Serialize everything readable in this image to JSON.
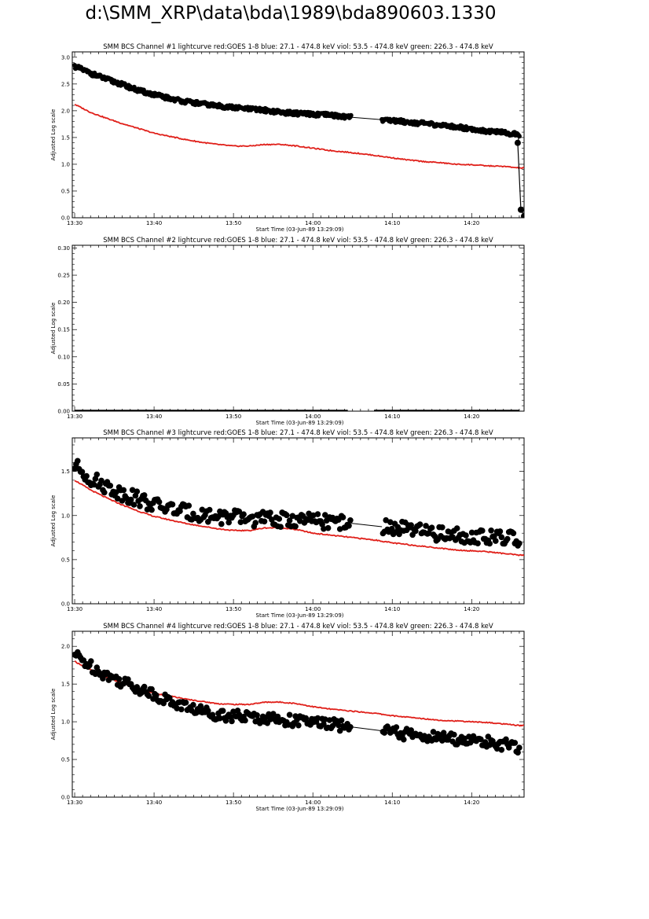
{
  "page": {
    "title": "d:\\SMM_XRP\\data\\bda\\1989\\bda890603.1330"
  },
  "colors": {
    "goes": "#e0201a",
    "bcs": "#000000"
  },
  "chart_data": [
    {
      "type": "scatter",
      "title": "SMM BCS Channel #1 lightcurve  red:GOES 1-8  blue: 27.1 - 474.8 keV  viol: 53.5 - 474.8 keV  green: 226.3 - 474.8 keV",
      "xlabel": "Start Time (03-Jun-89 13:29:09)",
      "ylabel": "Adjusted Log scale",
      "xticks": [
        "13:30",
        "13:40",
        "13:50",
        "14:00",
        "14:10",
        "14:20"
      ],
      "yticks": [
        "0.0",
        "0.5",
        "1.0",
        "1.5",
        "2.0",
        "2.5",
        "3.0"
      ],
      "xlim_minutes": [
        -0.15,
        28.3
      ],
      "ylim": [
        0,
        3.1
      ],
      "series": [
        {
          "name": "GOES 1-8",
          "style": "line",
          "color": "red",
          "x": [
            0,
            2,
            4,
            6,
            8,
            10,
            12,
            14,
            16,
            18,
            20,
            22,
            24,
            26,
            28,
            30,
            32,
            34,
            36,
            38,
            40,
            42,
            44,
            46,
            48,
            50,
            52,
            54,
            56
          ],
          "y": [
            2.12,
            1.97,
            1.86,
            1.76,
            1.67,
            1.58,
            1.52,
            1.46,
            1.41,
            1.37,
            1.34,
            1.34,
            1.37,
            1.37,
            1.34,
            1.3,
            1.26,
            1.23,
            1.2,
            1.16,
            1.12,
            1.08,
            1.05,
            1.03,
            1.0,
            0.99,
            0.97,
            0.96,
            0.93
          ]
        },
        {
          "name": "BCS Ch1",
          "style": "dots",
          "color": "black",
          "x": [
            0,
            2,
            4,
            6,
            8,
            10,
            12,
            14,
            16,
            18,
            20,
            22,
            24,
            26,
            28,
            30,
            32,
            34,
            36,
            38,
            40,
            42,
            44,
            46,
            48,
            50,
            52,
            54,
            56
          ],
          "y": [
            2.83,
            2.7,
            2.59,
            2.49,
            2.38,
            2.3,
            2.23,
            2.17,
            2.13,
            2.09,
            2.06,
            2.03,
            2.01,
            1.97,
            1.95,
            1.93,
            1.92,
            1.89,
            1.86,
            1.84,
            1.82,
            1.79,
            1.76,
            1.73,
            1.7,
            1.66,
            1.62,
            1.59,
            1.55
          ],
          "gap": [
            34.8,
            38.7
          ],
          "tail": {
            "x": [
              55.8,
              56.2,
              56.6
            ],
            "y": [
              1.4,
              0.15,
              0.03
            ]
          }
        }
      ]
    },
    {
      "type": "scatter",
      "title": "SMM BCS Channel #2 lightcurve  red:GOES 1-8  blue: 27.1 - 474.8 keV  viol: 53.5 - 474.8 keV  green: 226.3 - 474.8 keV",
      "xlabel": "Start Time (03-Jun-89 13:29:09)",
      "ylabel": "Adjusted Log scale",
      "xticks": [
        "13:30",
        "13:40",
        "13:50",
        "14:00",
        "14:10",
        "14:20"
      ],
      "yticks": [
        "0.00",
        "0.05",
        "0.10",
        "0.15",
        "0.20",
        "0.25",
        "0.30"
      ],
      "ylim": [
        0,
        0.305
      ],
      "series": [
        {
          "name": "BCS Ch2",
          "style": "flat",
          "color": "black",
          "segments": [
            [
              0,
              34.4
            ],
            [
              37.7,
              56.0
            ]
          ],
          "y": 0
        }
      ]
    },
    {
      "type": "scatter",
      "title": "SMM BCS Channel #3 lightcurve  red:GOES 1-8  blue: 27.1 - 474.8 keV  viol: 53.5 - 474.8 keV  green: 226.3 - 474.8 keV",
      "xlabel": "Start Time (03-Jun-89 13:29:09)",
      "ylabel": "Adjusted Log scale",
      "xticks": [
        "13:30",
        "13:40",
        "13:50",
        "14:00",
        "14:10",
        "14:20"
      ],
      "yticks": [
        "0.0",
        "0.5",
        "1.0",
        "1.5"
      ],
      "ylim": [
        0,
        1.88
      ],
      "series": [
        {
          "name": "GOES 1-8",
          "style": "line",
          "color": "red",
          "x": [
            0,
            2,
            4,
            6,
            8,
            10,
            12,
            14,
            16,
            18,
            20,
            22,
            24,
            26,
            28,
            30,
            32,
            34,
            36,
            38,
            40,
            42,
            44,
            46,
            48,
            50,
            52,
            54,
            56
          ],
          "y": [
            1.4,
            1.29,
            1.2,
            1.12,
            1.05,
            0.99,
            0.95,
            0.91,
            0.88,
            0.85,
            0.83,
            0.83,
            0.86,
            0.86,
            0.84,
            0.8,
            0.78,
            0.76,
            0.74,
            0.72,
            0.69,
            0.67,
            0.65,
            0.63,
            0.61,
            0.6,
            0.59,
            0.57,
            0.55
          ]
        },
        {
          "name": "BCS Ch3",
          "style": "dots",
          "color": "black",
          "x": [
            0,
            2,
            4,
            6,
            8,
            10,
            12,
            14,
            16,
            18,
            20,
            22,
            24,
            26,
            28,
            30,
            32,
            34,
            36,
            38,
            40,
            42,
            44,
            46,
            48,
            50,
            52,
            54,
            56
          ],
          "y": [
            1.57,
            1.42,
            1.33,
            1.25,
            1.19,
            1.12,
            1.08,
            1.04,
            1.01,
            0.99,
            0.98,
            0.96,
            0.96,
            0.95,
            0.95,
            0.94,
            0.93,
            0.92,
            0.9,
            0.88,
            0.86,
            0.84,
            0.81,
            0.79,
            0.78,
            0.77,
            0.75,
            0.74,
            0.74
          ],
          "gap": [
            34.8,
            38.7
          ]
        }
      ]
    },
    {
      "type": "scatter",
      "title": "SMM BCS Channel #4 lightcurve  red:GOES 1-8  blue: 27.1 - 474.8 keV  viol: 53.5 - 474.8 keV  green: 226.3 - 474.8 keV",
      "xlabel": "Start Time (03-Jun-89 13:29:09)",
      "ylabel": "Adjusted Log scale",
      "xticks": [
        "13:30",
        "13:40",
        "13:50",
        "14:00",
        "14:10",
        "14:20"
      ],
      "yticks": [
        "0.0",
        "0.5",
        "1.0",
        "1.5",
        "2.0"
      ],
      "ylim": [
        0,
        2.2
      ],
      "series": [
        {
          "name": "GOES 1-8",
          "style": "line",
          "color": "red",
          "x": [
            0,
            2,
            4,
            6,
            8,
            10,
            12,
            14,
            16,
            18,
            20,
            22,
            24,
            26,
            28,
            30,
            32,
            34,
            36,
            38,
            40,
            42,
            44,
            46,
            48,
            50,
            52,
            54,
            56
          ],
          "y": [
            1.8,
            1.69,
            1.59,
            1.51,
            1.44,
            1.38,
            1.34,
            1.3,
            1.27,
            1.24,
            1.23,
            1.23,
            1.26,
            1.26,
            1.24,
            1.2,
            1.17,
            1.15,
            1.13,
            1.11,
            1.08,
            1.06,
            1.04,
            1.02,
            1.01,
            1.0,
            0.99,
            0.97,
            0.95
          ]
        },
        {
          "name": "BCS Ch4",
          "style": "dots",
          "color": "black",
          "x": [
            0,
            2,
            4,
            6,
            8,
            10,
            12,
            14,
            16,
            18,
            20,
            22,
            24,
            26,
            28,
            30,
            32,
            34,
            36,
            38,
            40,
            42,
            44,
            46,
            48,
            50,
            52,
            54,
            56
          ],
          "y": [
            1.89,
            1.74,
            1.62,
            1.53,
            1.45,
            1.36,
            1.27,
            1.2,
            1.14,
            1.1,
            1.08,
            1.06,
            1.05,
            1.03,
            1.01,
            0.99,
            0.97,
            0.94,
            0.92,
            0.89,
            0.86,
            0.83,
            0.81,
            0.79,
            0.77,
            0.75,
            0.73,
            0.7,
            0.64
          ],
          "gap": [
            34.8,
            38.7
          ]
        }
      ]
    }
  ]
}
